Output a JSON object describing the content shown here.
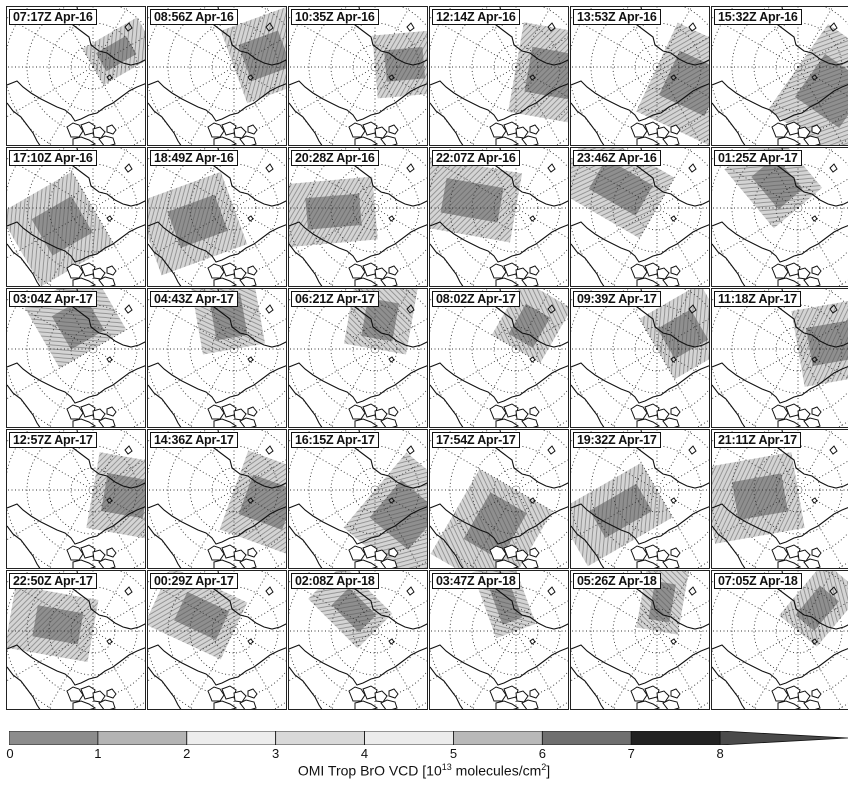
{
  "panels": [
    {
      "label": "07:17Z Apr-16",
      "swaths": [
        {
          "a": -30,
          "d": 0.55,
          "r": 0.45,
          "l": 0.3
        }
      ]
    },
    {
      "label": "08:56Z Apr-16",
      "swaths": [
        {
          "a": -20,
          "d": 0.5,
          "r": 0.55,
          "l": 0.55
        }
      ]
    },
    {
      "label": "10:35Z Apr-16",
      "swaths": [
        {
          "a": -5,
          "d": 0.45,
          "r": 0.5,
          "l": 0.45
        }
      ]
    },
    {
      "label": "12:14Z Apr-16",
      "swaths": [
        {
          "a": 10,
          "d": 0.5,
          "r": 0.6,
          "l": 0.65
        }
      ]
    },
    {
      "label": "13:53Z Apr-16",
      "swaths": [
        {
          "a": 25,
          "d": 0.5,
          "r": 0.65,
          "l": 0.7
        }
      ]
    },
    {
      "label": "15:32Z Apr-16",
      "swaths": [
        {
          "a": 35,
          "d": 0.5,
          "r": 0.7,
          "l": 0.75
        }
      ]
    },
    {
      "label": "17:10Z Apr-16",
      "swaths": [
        {
          "a": 150,
          "d": 0.4,
          "r": 0.6,
          "l": 0.6
        }
      ]
    },
    {
      "label": "18:49Z Apr-16",
      "swaths": [
        {
          "a": 160,
          "d": 0.45,
          "r": 0.65,
          "l": 0.55
        }
      ]
    },
    {
      "label": "20:28Z Apr-16",
      "swaths": [
        {
          "a": 175,
          "d": 0.45,
          "r": 0.7,
          "l": 0.45
        }
      ]
    },
    {
      "label": "22:07Z Apr-16",
      "swaths": [
        {
          "a": -170,
          "d": 0.45,
          "r": 0.75,
          "l": 0.5
        }
      ]
    },
    {
      "label": "23:46Z Apr-16",
      "swaths": [
        {
          "a": -150,
          "d": 0.45,
          "r": 0.7,
          "l": 0.5
        }
      ]
    },
    {
      "label": "01:25Z Apr-17",
      "swaths": [
        {
          "a": -130,
          "d": 0.45,
          "r": 0.55,
          "l": 0.45
        }
      ]
    },
    {
      "label": "03:04Z Apr-17",
      "swaths": [
        {
          "a": -120,
          "d": 0.4,
          "r": 0.5,
          "l": 0.55
        }
      ]
    },
    {
      "label": "04:43Z Apr-17",
      "swaths": [
        {
          "a": -100,
          "d": 0.4,
          "r": 0.55,
          "l": 0.45
        }
      ]
    },
    {
      "label": "06:21Z Apr-17",
      "swaths": [
        {
          "a": -80,
          "d": 0.4,
          "r": 0.5,
          "l": 0.45
        }
      ]
    },
    {
      "label": "08:02Z Apr-17",
      "swaths": [
        {
          "a": -60,
          "d": 0.45,
          "r": 0.45,
          "l": 0.4
        }
      ]
    },
    {
      "label": "09:39Z Apr-17",
      "swaths": [
        {
          "a": -30,
          "d": 0.5,
          "r": 0.5,
          "l": 0.5
        }
      ]
    },
    {
      "label": "11:18Z Apr-17",
      "swaths": [
        {
          "a": -10,
          "d": 0.5,
          "r": 0.55,
          "l": 0.55
        }
      ]
    },
    {
      "label": "12:57Z Apr-17",
      "swaths": [
        {
          "a": 10,
          "d": 0.5,
          "r": 0.55,
          "l": 0.55
        }
      ]
    },
    {
      "label": "14:36Z Apr-17",
      "swaths": [
        {
          "a": 20,
          "d": 0.5,
          "r": 0.6,
          "l": 0.6
        }
      ]
    },
    {
      "label": "16:15Z Apr-17",
      "swaths": [
        {
          "a": 40,
          "d": 0.5,
          "r": 0.65,
          "l": 0.7
        }
      ]
    },
    {
      "label": "17:54Z Apr-17",
      "swaths": [
        {
          "a": 120,
          "d": 0.45,
          "r": 0.7,
          "l": 0.6
        }
      ]
    },
    {
      "label": "19:32Z Apr-17",
      "swaths": [
        {
          "a": 150,
          "d": 0.45,
          "r": 0.7,
          "l": 0.45
        }
      ]
    },
    {
      "label": "21:11Z Apr-17",
      "swaths": [
        {
          "a": 170,
          "d": 0.45,
          "r": 0.65,
          "l": 0.55
        }
      ]
    },
    {
      "label": "22:50Z Apr-17",
      "swaths": [
        {
          "a": -170,
          "d": 0.45,
          "r": 0.6,
          "l": 0.45
        }
      ]
    },
    {
      "label": "00:29Z Apr-17",
      "swaths": [
        {
          "a": -155,
          "d": 0.45,
          "r": 0.6,
          "l": 0.45
        }
      ]
    },
    {
      "label": "02:08Z Apr-18",
      "swaths": [
        {
          "a": -135,
          "d": 0.45,
          "r": 0.5,
          "l": 0.35
        }
      ]
    },
    {
      "label": "03:47Z Apr-18",
      "swaths": [
        {
          "a": -110,
          "d": 0.45,
          "r": 0.5,
          "l": 0.3
        }
      ]
    },
    {
      "label": "05:26Z Apr-18",
      "swaths": [
        {
          "a": -80,
          "d": 0.45,
          "r": 0.5,
          "l": 0.3
        }
      ]
    },
    {
      "label": "07:05Z Apr-18",
      "swaths": [
        {
          "a": -50,
          "d": 0.45,
          "r": 0.5,
          "l": 0.35
        }
      ]
    }
  ],
  "colorbar": {
    "ticks": [
      "0",
      "1",
      "2",
      "3",
      "4",
      "5",
      "6",
      "7",
      "8"
    ],
    "range": [
      0,
      9
    ],
    "bins": [
      {
        "from": 0,
        "to": 1,
        "color": "#8c8c8c"
      },
      {
        "from": 1,
        "to": 2,
        "color": "#b4b4b4"
      },
      {
        "from": 2,
        "to": 3,
        "color": "#ededed"
      },
      {
        "from": 3,
        "to": 4,
        "color": "#d9d9d9"
      },
      {
        "from": 4,
        "to": 5,
        "color": "#ececec"
      },
      {
        "from": 5,
        "to": 6,
        "color": "#b9b9b9"
      },
      {
        "from": 6,
        "to": 7,
        "color": "#6f6f6f"
      },
      {
        "from": 7,
        "to": 8,
        "color": "#222222"
      },
      {
        "from": 8,
        "to": 9,
        "color": "#4a4a4a"
      }
    ],
    "label_pre": "OMI Trop BrO VCD [10",
    "label_exp": "13",
    "label_mid": " molecules/cm",
    "label_exp2": "2",
    "label_post": "]"
  }
}
